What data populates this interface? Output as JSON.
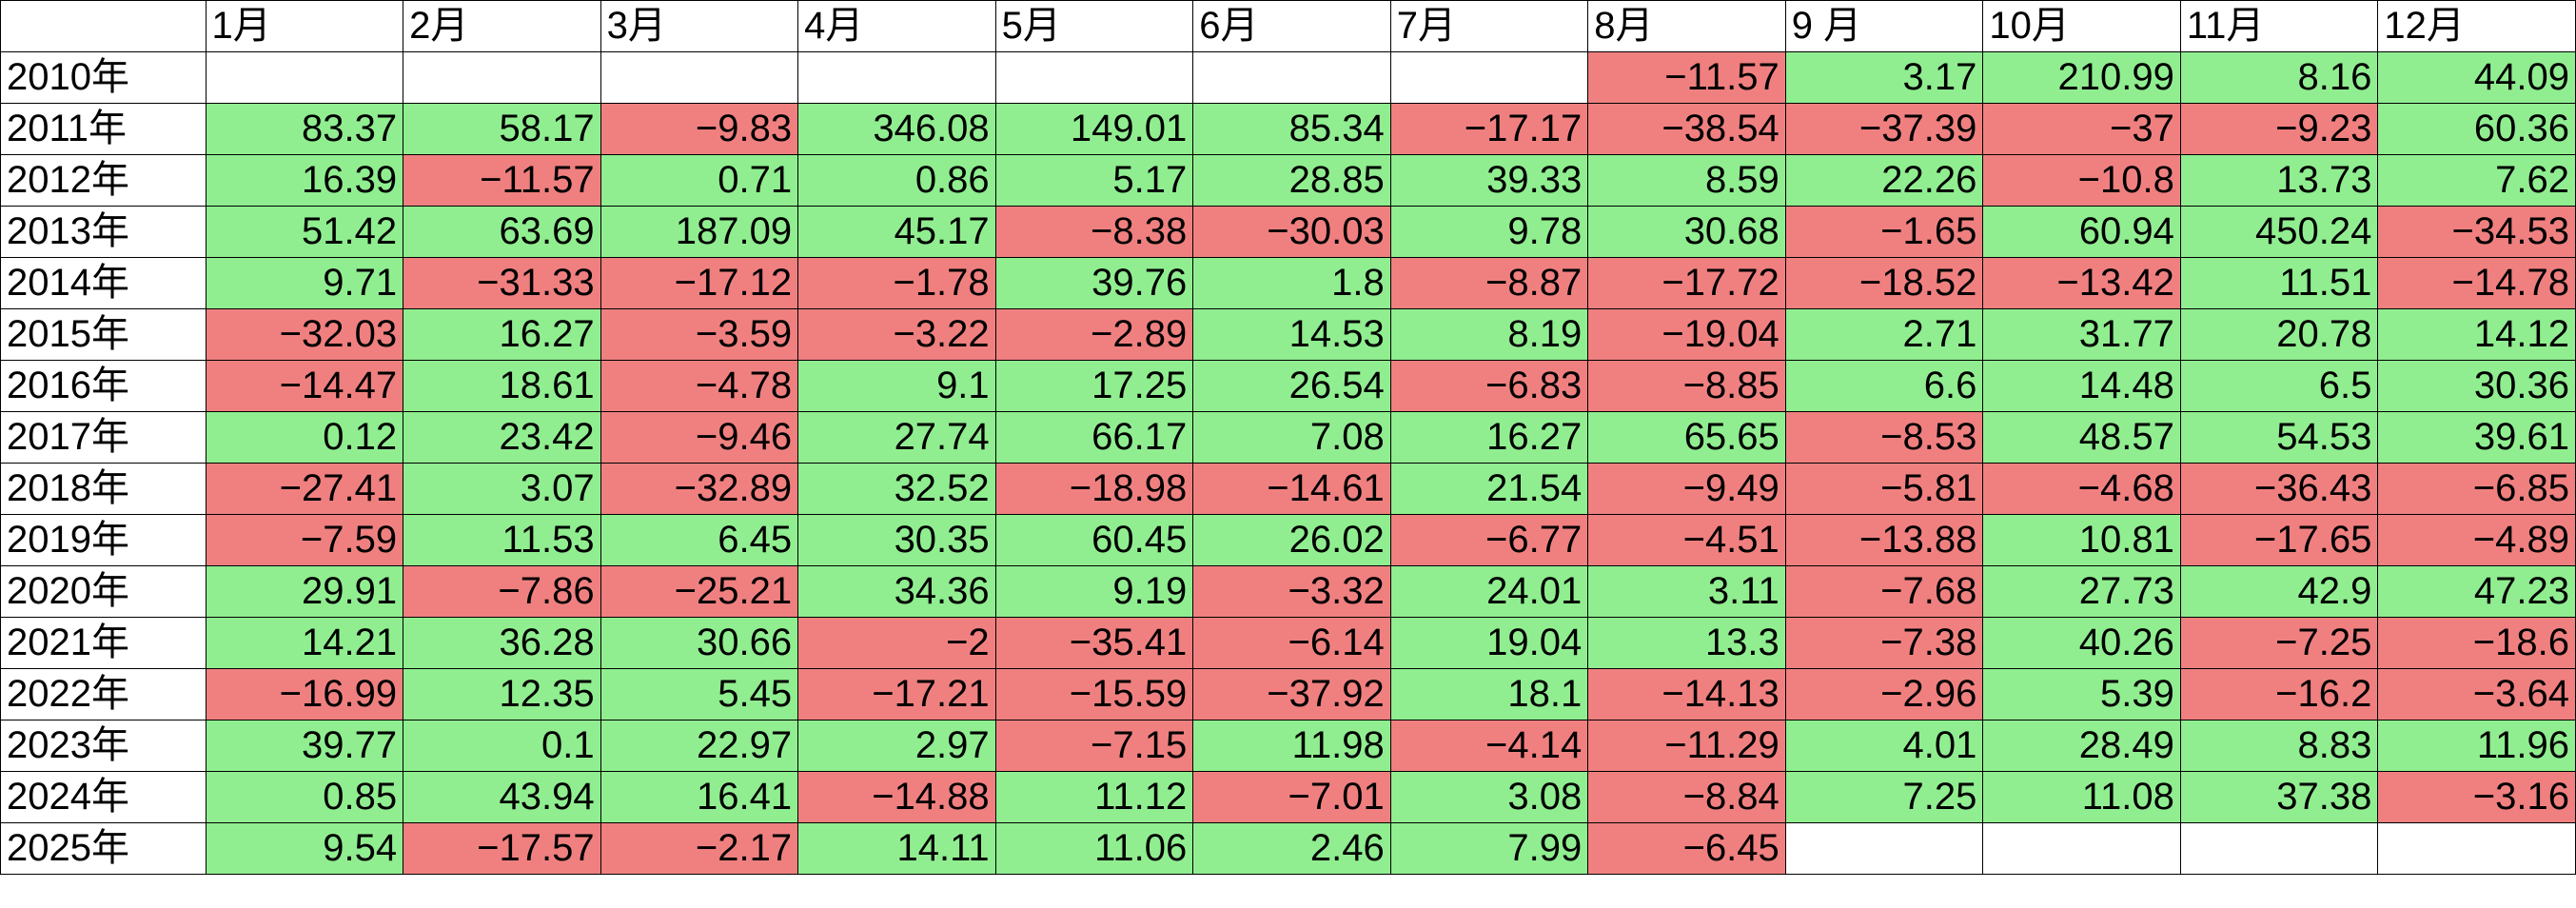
{
  "table": {
    "months": [
      "1月",
      "2月",
      "3月",
      "4月",
      "5月",
      "6月",
      "7月",
      "8月",
      "9 月",
      "10月",
      "11月",
      "12月"
    ],
    "rows": [
      {
        "year": "2010年",
        "values": [
          "",
          "",
          "",
          "",
          "",
          "",
          "",
          "-11.57",
          "3.17",
          "210.99",
          "8.16",
          "44.09"
        ]
      },
      {
        "year": "2011年",
        "values": [
          "83.37",
          "58.17",
          "-9.83",
          "346.08",
          "149.01",
          "85.34",
          "-17.17",
          "-38.54",
          "-37.39",
          "-37",
          "-9.23",
          "60.36"
        ]
      },
      {
        "year": "2012年",
        "values": [
          "16.39",
          "-11.57",
          "0.71",
          "0.86",
          "5.17",
          "28.85",
          "39.33",
          "8.59",
          "22.26",
          "-10.8",
          "13.73",
          "7.62"
        ]
      },
      {
        "year": "2013年",
        "values": [
          "51.42",
          "63.69",
          "187.09",
          "45.17",
          "-8.38",
          "-30.03",
          "9.78",
          "30.68",
          "-1.65",
          "60.94",
          "450.24",
          "-34.53"
        ]
      },
      {
        "year": "2014年",
        "values": [
          "9.71",
          "-31.33",
          "-17.12",
          "-1.78",
          "39.76",
          "1.8",
          "-8.87",
          "-17.72",
          "-18.52",
          "-13.42",
          "11.51",
          "-14.78"
        ]
      },
      {
        "year": "2015年",
        "values": [
          "-32.03",
          "16.27",
          "-3.59",
          "-3.22",
          "-2.89",
          "14.53",
          "8.19",
          "-19.04",
          "2.71",
          "31.77",
          "20.78",
          "14.12"
        ]
      },
      {
        "year": "2016年",
        "values": [
          "-14.47",
          "18.61",
          "-4.78",
          "9.1",
          "17.25",
          "26.54",
          "-6.83",
          "-8.85",
          "6.6",
          "14.48",
          "6.5",
          "30.36"
        ]
      },
      {
        "year": "2017年",
        "values": [
          "0.12",
          "23.42",
          "-9.46",
          "27.74",
          "66.17",
          "7.08",
          "16.27",
          "65.65",
          "-8.53",
          "48.57",
          "54.53",
          "39.61"
        ]
      },
      {
        "year": "2018年",
        "values": [
          "-27.41",
          "3.07",
          "-32.89",
          "32.52",
          "-18.98",
          "-14.61",
          "21.54",
          "-9.49",
          "-5.81",
          "-4.68",
          "-36.43",
          "-6.85"
        ]
      },
      {
        "year": "2019年",
        "values": [
          "-7.59",
          "11.53",
          "6.45",
          "30.35",
          "60.45",
          "26.02",
          "-6.77",
          "-4.51",
          "-13.88",
          "10.81",
          "-17.65",
          "-4.89"
        ]
      },
      {
        "year": "2020年",
        "values": [
          "29.91",
          "-7.86",
          "-25.21",
          "34.36",
          "9.19",
          "-3.32",
          "24.01",
          "3.11",
          "-7.68",
          "27.73",
          "42.9",
          "47.23"
        ]
      },
      {
        "year": "2021年",
        "values": [
          "14.21",
          "36.28",
          "30.66",
          "-2",
          "-35.41",
          "-6.14",
          "19.04",
          "13.3",
          "-7.38",
          "40.26",
          "-7.25",
          "-18.6"
        ]
      },
      {
        "year": "2022年",
        "values": [
          "-16.99",
          "12.35",
          "5.45",
          "-17.21",
          "-15.59",
          "-37.92",
          "18.1",
          "-14.13",
          "-2.96",
          "5.39",
          "-16.2",
          "-3.64"
        ]
      },
      {
        "year": "2023年",
        "values": [
          "39.77",
          "0.1",
          "22.97",
          "2.97",
          "-7.15",
          "11.98",
          "-4.14",
          "-11.29",
          "4.01",
          "28.49",
          "8.83",
          "11.96"
        ]
      },
      {
        "year": "2024年",
        "values": [
          "0.85",
          "43.94",
          "16.41",
          "-14.88",
          "11.12",
          "-7.01",
          "3.08",
          "-8.84",
          "7.25",
          "11.08",
          "37.38",
          "-3.16"
        ]
      },
      {
        "year": "2025年",
        "values": [
          "9.54",
          "-17.57",
          "-2.17",
          "14.11",
          "11.06",
          "2.46",
          "7.99",
          "-6.45",
          "",
          "",
          "",
          ""
        ]
      }
    ]
  },
  "colors": {
    "positive_fill": "#90ee90",
    "negative_fill": "#f08080",
    "empty_fill": "#ffffff"
  }
}
